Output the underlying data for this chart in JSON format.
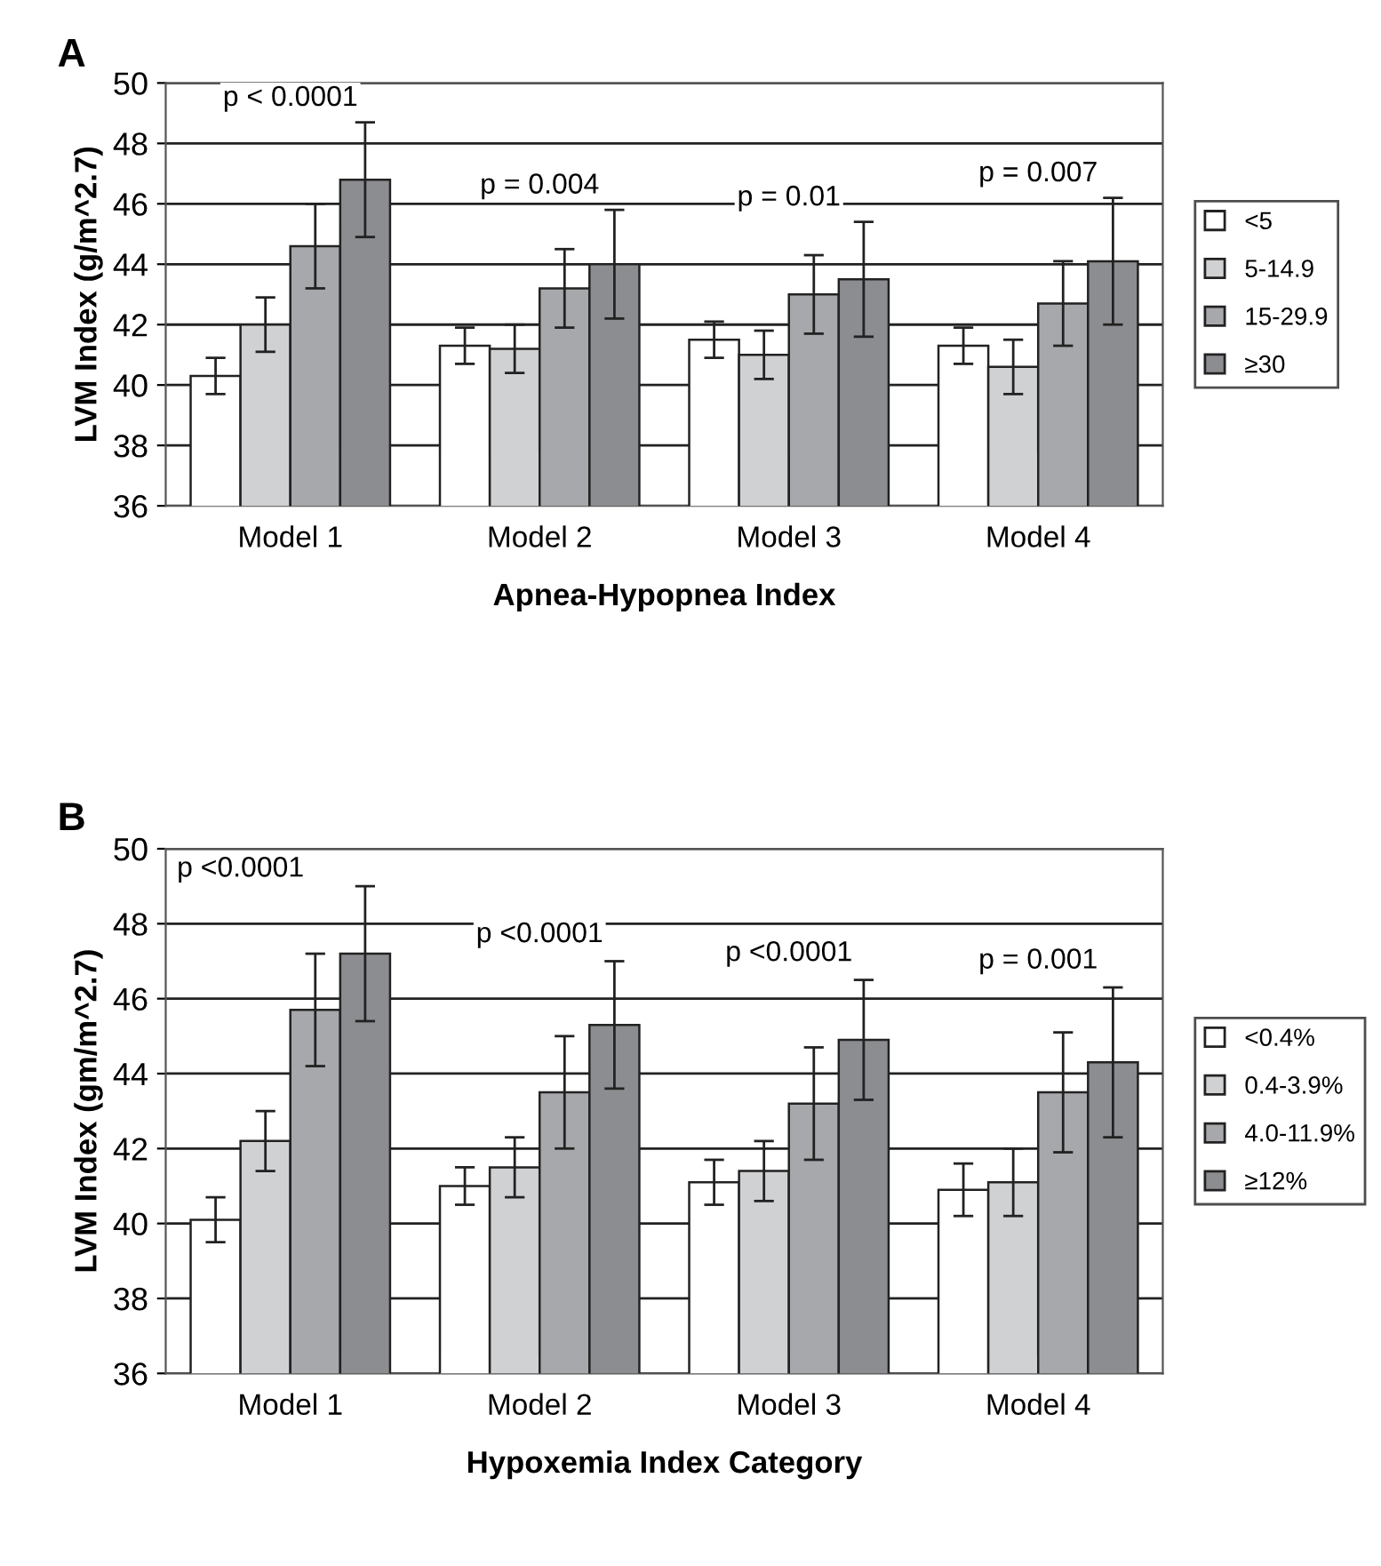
{
  "chart_data": [
    {
      "type": "bar",
      "xlabel": "Apnea-Hypopnea Index",
      "ylabel": "LVM Index (g/m^2.7)",
      "categories": [
        "Model 1",
        "Model 2",
        "Model 3",
        "Model 4"
      ],
      "ylim": [
        36,
        50
      ],
      "yticks": [
        36,
        38,
        40,
        42,
        44,
        46,
        48,
        50
      ],
      "grid": "y",
      "legend": "right",
      "series": [
        {
          "name": "<5",
          "color": "#ffffff",
          "values": [
            40.3,
            41.3,
            41.5,
            41.3
          ],
          "errors": [
            [
              39.7,
              40.9
            ],
            [
              40.7,
              41.9
            ],
            [
              40.9,
              42.1
            ],
            [
              40.7,
              41.9
            ]
          ]
        },
        {
          "name": "5-14.9",
          "color": "#d0d1d3",
          "values": [
            42.0,
            41.2,
            41.0,
            40.6
          ],
          "errors": [
            [
              41.1,
              42.9
            ],
            [
              40.4,
              42.0
            ],
            [
              40.2,
              41.8
            ],
            [
              39.7,
              41.5
            ]
          ]
        },
        {
          "name": "15-29.9",
          "color": "#a7a8ab",
          "values": [
            44.6,
            43.2,
            43.0,
            42.7
          ],
          "errors": [
            [
              43.2,
              46.0
            ],
            [
              41.9,
              44.5
            ],
            [
              41.7,
              44.3
            ],
            [
              41.3,
              44.1
            ]
          ]
        },
        {
          "name": "≥30",
          "color": "#8c8d90",
          "values": [
            46.8,
            44.0,
            43.5,
            44.1
          ],
          "errors": [
            [
              44.9,
              48.7
            ],
            [
              42.2,
              45.8
            ],
            [
              41.6,
              45.4
            ],
            [
              42.0,
              46.2
            ]
          ]
        }
      ],
      "annotations": [
        "A",
        "p < 0.0001",
        "p = 0.004",
        "p = 0.01",
        "p = 0.007"
      ]
    },
    {
      "type": "bar",
      "xlabel": "Hypoxemia Index Category",
      "ylabel": "LVM Index (gm/m^2.7)",
      "categories": [
        "Model 1",
        "Model 2",
        "Model 3",
        "Model 4"
      ],
      "ylim": [
        36,
        50
      ],
      "yticks": [
        36,
        38,
        40,
        42,
        44,
        46,
        48,
        50
      ],
      "grid": "y",
      "legend": "right",
      "series": [
        {
          "name": "<0.4%",
          "color": "#ffffff",
          "values": [
            40.1,
            41.0,
            41.1,
            40.9
          ],
          "errors": [
            [
              39.5,
              40.7
            ],
            [
              40.5,
              41.5
            ],
            [
              40.5,
              41.7
            ],
            [
              40.2,
              41.6
            ]
          ]
        },
        {
          "name": "0.4-3.9%",
          "color": "#d0d1d3",
          "values": [
            42.2,
            41.5,
            41.4,
            41.1
          ],
          "errors": [
            [
              41.4,
              43.0
            ],
            [
              40.7,
              42.3
            ],
            [
              40.6,
              42.2
            ],
            [
              40.2,
              42.0
            ]
          ]
        },
        {
          "name": "4.0-11.9%",
          "color": "#a7a8ab",
          "values": [
            45.7,
            43.5,
            43.2,
            43.5
          ],
          "errors": [
            [
              44.2,
              47.2
            ],
            [
              42.0,
              45.0
            ],
            [
              41.7,
              44.7
            ],
            [
              41.9,
              45.1
            ]
          ]
        },
        {
          "name": "≥12%",
          "color": "#8c8d90",
          "values": [
            47.2,
            45.3,
            44.9,
            44.3
          ],
          "errors": [
            [
              45.4,
              49.0
            ],
            [
              43.6,
              47.0
            ],
            [
              43.3,
              46.5
            ],
            [
              42.3,
              46.3
            ]
          ]
        }
      ],
      "annotations": [
        "B",
        "p <0.0001",
        "p <0.0001",
        "p <0.0001",
        "p = 0.001"
      ]
    }
  ]
}
